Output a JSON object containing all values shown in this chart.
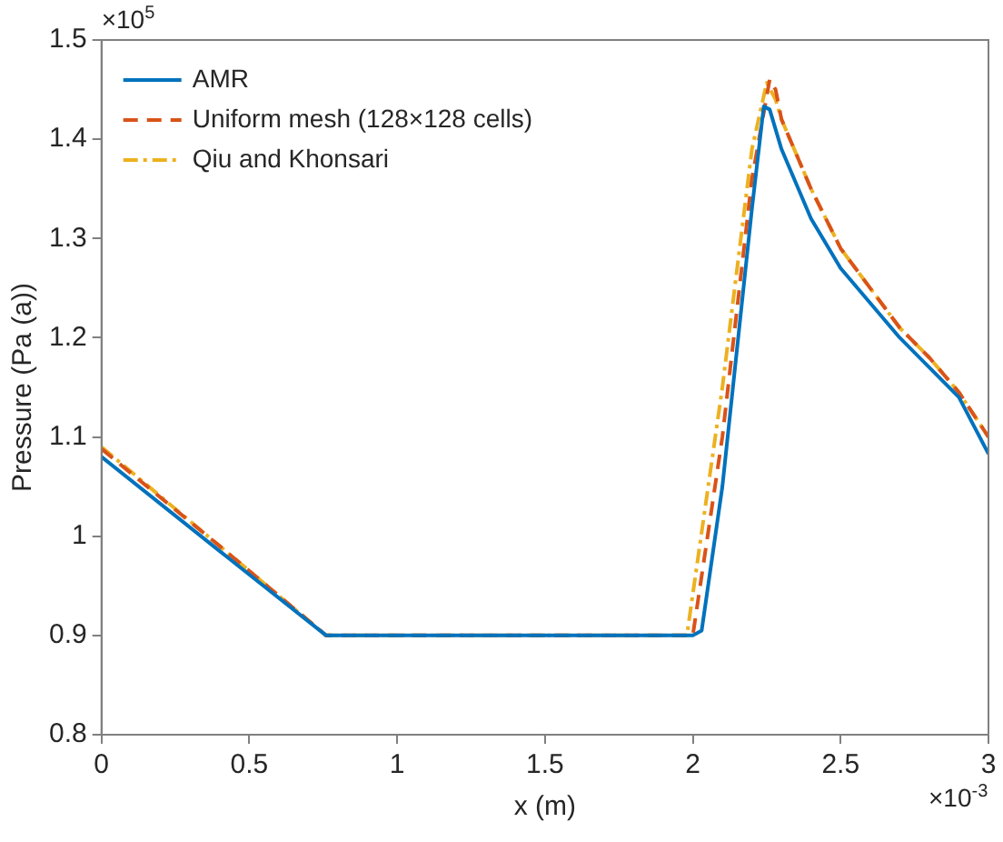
{
  "chart_data": {
    "type": "line",
    "xlabel": "x (m)",
    "ylabel": "Pressure (Pa (a))",
    "annotations": [
      "×10$^{5}$",
      "×10$^{-3}$"
    ],
    "xlim": [
      0,
      3
    ],
    "xticks": [
      0,
      0.5,
      1,
      1.5,
      2,
      2.5,
      3
    ],
    "ylim": [
      0.8,
      1.5
    ],
    "yticks": [
      0.8,
      0.9,
      1,
      1.1,
      1.2,
      1.3,
      1.4,
      1.5
    ],
    "grid": false,
    "legend": "top left",
    "marker": "none",
    "series": [
      {
        "name": "AMR",
        "color": "#0072bd",
        "line_style": "solid",
        "x": [
          0,
          0.4,
          0.76,
          1.5,
          2.0,
          2.03,
          2.1,
          2.2,
          2.24,
          2.26,
          2.3,
          2.4,
          2.5,
          2.6,
          2.7,
          2.8,
          2.9,
          3.0
        ],
        "values": [
          1.08,
          0.985,
          0.9,
          0.9,
          0.9,
          0.905,
          1.05,
          1.33,
          1.433,
          1.43,
          1.39,
          1.32,
          1.27,
          1.235,
          1.2,
          1.17,
          1.14,
          1.083
        ]
      },
      {
        "name": "Uniform mesh (128×128 cells)",
        "color": "#d95319",
        "line_style": "dashed",
        "x": [
          0,
          0.4,
          0.76,
          2.0,
          2.1,
          2.2,
          2.26,
          2.28,
          2.3,
          2.4,
          2.5,
          2.6,
          2.7,
          2.8,
          2.9,
          3.0
        ],
        "values": [
          1.088,
          0.99,
          0.9,
          0.9,
          1.1,
          1.36,
          1.46,
          1.45,
          1.42,
          1.35,
          1.29,
          1.25,
          1.21,
          1.18,
          1.145,
          1.1
        ]
      },
      {
        "name": "Qiu and Khonsari",
        "color": "#edb120",
        "line_style": "dashdot",
        "x": [
          0,
          0.4,
          0.76,
          1.98,
          2.1,
          2.2,
          2.25,
          2.28,
          2.3,
          2.4,
          2.5,
          2.6,
          2.7,
          2.8,
          2.9,
          3.0
        ],
        "values": [
          1.09,
          0.99,
          0.9,
          0.9,
          1.15,
          1.39,
          1.457,
          1.44,
          1.42,
          1.35,
          1.29,
          1.25,
          1.21,
          1.18,
          1.145,
          1.1
        ]
      }
    ]
  }
}
